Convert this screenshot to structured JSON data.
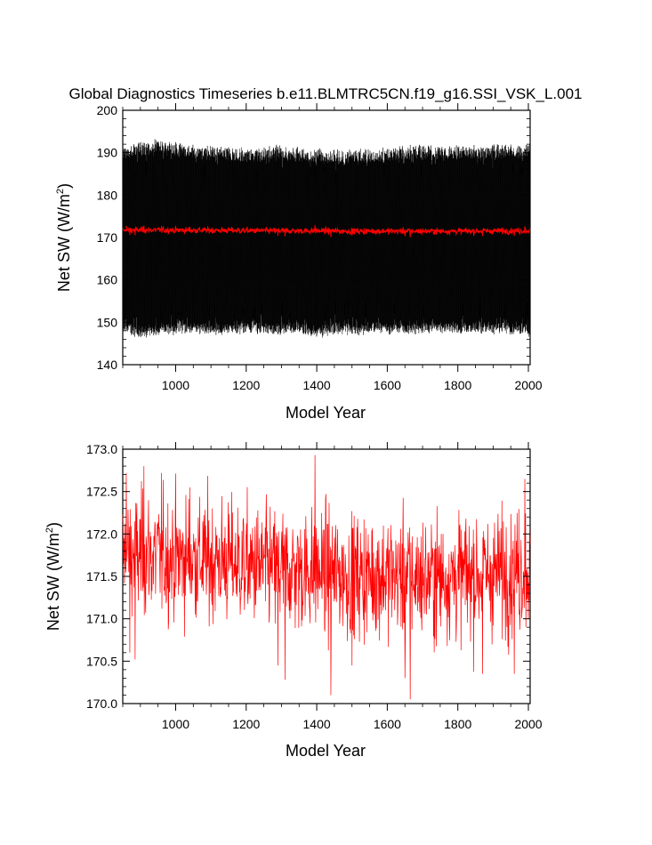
{
  "figure": {
    "title": "Global Diagnostics Timeseries b.e11.BLMTRC5CN.f19_g16.SSI_VSK_L.001",
    "colors": {
      "monthly": "#000000",
      "annual": "#ff0000",
      "axes": "#000000",
      "background": "#ffffff"
    }
  },
  "chart_data": [
    {
      "type": "line",
      "panel": "top",
      "xlabel": "Model Year",
      "ylabel_main": "Net SW (W/m",
      "ylabel_sup": "2",
      "ylabel_close": ")",
      "xlim": [
        850,
        2005
      ],
      "ylim": [
        140,
        200
      ],
      "xticks": [
        1000,
        1200,
        1400,
        1600,
        1800,
        2000
      ],
      "yticks": [
        140,
        150,
        160,
        170,
        180,
        190,
        200
      ],
      "xtick_labels": [
        "1000",
        "1200",
        "1400",
        "1600",
        "1800",
        "2000"
      ],
      "ytick_labels": [
        "140",
        "150",
        "160",
        "170",
        "180",
        "190",
        "200"
      ],
      "series": [
        {
          "kind": "monthly",
          "color": "#000000",
          "x_start": 850,
          "x_end": 2005,
          "envelope_max": [
            192.5,
            193.0,
            193.5,
            192.5,
            192.0,
            192.0,
            191.5,
            191.5,
            192.0,
            191.5,
            191.5,
            191.0,
            191.0,
            191.5,
            191.5,
            192.0,
            192.0,
            192.0,
            192.0,
            192.0,
            192.5,
            192.5
          ],
          "envelope_min": [
            147.0,
            146.0,
            146.5,
            147.0,
            147.0,
            146.5,
            147.0,
            147.0,
            146.5,
            147.0,
            146.0,
            147.0,
            146.5,
            147.0,
            147.0,
            147.0,
            147.0,
            147.0,
            147.0,
            147.0,
            147.0,
            146.5
          ]
        },
        {
          "kind": "annual",
          "color": "#ff0000",
          "x_start": 850,
          "x_end": 2005
        }
      ]
    },
    {
      "type": "line",
      "panel": "bottom",
      "xlabel": "Model Year",
      "ylabel_main": "Net SW (W/m",
      "ylabel_sup": "2",
      "ylabel_close": ")",
      "xlim": [
        850,
        2005
      ],
      "ylim": [
        170.0,
        173.0
      ],
      "xticks": [
        1000,
        1200,
        1400,
        1600,
        1800,
        2000
      ],
      "yticks": [
        170.0,
        170.5,
        171.0,
        171.5,
        172.0,
        172.5,
        173.0
      ],
      "xtick_labels": [
        "1000",
        "1200",
        "1400",
        "1600",
        "1800",
        "2000"
      ],
      "ytick_labels": [
        "170.0",
        "170.5",
        "171.0",
        "171.5",
        "172.0",
        "172.5",
        "173.0"
      ],
      "series": [
        {
          "kind": "annual",
          "color": "#ff0000",
          "x_start": 850,
          "x_end": 2005,
          "segment_means": [
            171.75,
            171.75,
            171.72,
            171.7,
            171.68,
            171.62,
            171.58,
            171.57,
            171.55,
            171.5,
            171.52,
            171.5,
            171.48,
            171.5,
            171.52,
            171.55,
            171.6
          ],
          "spikes": [
            {
              "x": 860,
              "y": 172.72
            },
            {
              "x": 870,
              "y": 170.6
            },
            {
              "x": 885,
              "y": 170.52
            },
            {
              "x": 910,
              "y": 172.8
            },
            {
              "x": 960,
              "y": 172.72
            },
            {
              "x": 1040,
              "y": 172.55
            },
            {
              "x": 1290,
              "y": 170.45
            },
            {
              "x": 1310,
              "y": 170.28
            },
            {
              "x": 1395,
              "y": 172.93
            },
            {
              "x": 1440,
              "y": 170.1
            },
            {
              "x": 1500,
              "y": 170.45
            },
            {
              "x": 1650,
              "y": 170.3
            },
            {
              "x": 1665,
              "y": 170.05
            },
            {
              "x": 1870,
              "y": 170.35
            },
            {
              "x": 1960,
              "y": 170.35
            },
            {
              "x": 1990,
              "y": 172.65
            }
          ]
        }
      ]
    }
  ]
}
